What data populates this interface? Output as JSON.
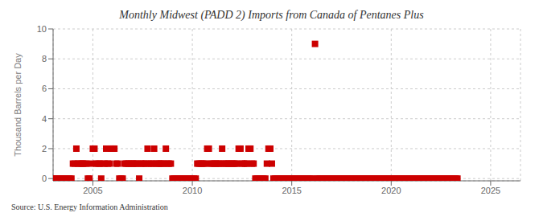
{
  "chart_data": {
    "type": "scatter",
    "title": "Monthly Midwest (PADD 2) Imports from Canada of Pentanes Plus",
    "ylabel": "Thousand Barrels per Day",
    "annotations": [
      "Source: U.S. Energy Information Administration"
    ],
    "color": "#cc0000",
    "marker": "square",
    "grid": true,
    "xlim": [
      2003.0,
      2026.5
    ],
    "ylim": [
      -0.15,
      10
    ],
    "xticks": [
      2005,
      2010,
      2015,
      2020,
      2025
    ],
    "yticks": [
      0,
      2,
      4,
      6,
      8,
      10
    ],
    "x": [
      2003.0,
      2003.08,
      2003.17,
      2003.25,
      2003.33,
      2003.42,
      2003.5,
      2003.58,
      2003.67,
      2003.75,
      2003.83,
      2003.92,
      2004.0,
      2004.08,
      2004.17,
      2004.25,
      2004.33,
      2004.42,
      2004.5,
      2004.58,
      2004.67,
      2004.75,
      2004.83,
      2004.92,
      2005.0,
      2005.08,
      2005.17,
      2005.25,
      2005.33,
      2005.42,
      2005.5,
      2005.58,
      2005.67,
      2005.75,
      2005.83,
      2005.92,
      2006.0,
      2006.08,
      2006.17,
      2006.25,
      2006.33,
      2006.42,
      2006.5,
      2006.58,
      2006.67,
      2006.75,
      2006.83,
      2006.92,
      2007.0,
      2007.08,
      2007.17,
      2007.25,
      2007.33,
      2007.42,
      2007.5,
      2007.58,
      2007.67,
      2007.75,
      2007.83,
      2007.92,
      2008.0,
      2008.08,
      2008.17,
      2008.25,
      2008.33,
      2008.42,
      2008.5,
      2008.58,
      2008.67,
      2008.75,
      2008.83,
      2008.92,
      2009.0,
      2009.08,
      2009.17,
      2009.25,
      2009.33,
      2009.42,
      2009.5,
      2009.58,
      2009.67,
      2009.75,
      2009.83,
      2009.92,
      2010.0,
      2010.08,
      2010.17,
      2010.25,
      2010.33,
      2010.42,
      2010.5,
      2010.58,
      2010.67,
      2010.75,
      2010.83,
      2010.92,
      2011.0,
      2011.08,
      2011.17,
      2011.25,
      2011.33,
      2011.42,
      2011.5,
      2011.58,
      2011.67,
      2011.75,
      2011.83,
      2011.92,
      2012.0,
      2012.08,
      2012.17,
      2012.25,
      2012.33,
      2012.42,
      2012.5,
      2012.58,
      2012.67,
      2012.75,
      2012.83,
      2012.92,
      2013.0,
      2013.08,
      2013.17,
      2013.25,
      2013.33,
      2013.42,
      2013.5,
      2013.58,
      2013.67,
      2013.75,
      2013.83,
      2013.92,
      2014.0,
      2014.08,
      2014.17,
      2014.25,
      2014.33,
      2014.42,
      2014.5,
      2014.58,
      2014.67,
      2014.75,
      2014.83,
      2014.92,
      2015.0,
      2015.08,
      2015.17,
      2015.25,
      2015.33,
      2015.42,
      2015.5,
      2015.58,
      2015.67,
      2015.75,
      2015.83,
      2015.92,
      2016.0,
      2016.17,
      2016.25,
      2016.33,
      2016.42,
      2016.5,
      2016.58,
      2016.67,
      2016.75,
      2016.83,
      2016.92,
      2017.0,
      2017.08,
      2017.17,
      2017.25,
      2017.33,
      2017.42,
      2017.5,
      2017.58,
      2017.67,
      2017.75,
      2017.83,
      2017.92,
      2018.0,
      2018.08,
      2018.17,
      2018.25,
      2018.33,
      2018.42,
      2018.5,
      2018.58,
      2018.67,
      2018.75,
      2018.83,
      2018.92,
      2019.0,
      2019.08,
      2019.17,
      2019.25,
      2019.33,
      2019.42,
      2019.5,
      2019.58,
      2019.67,
      2019.75,
      2019.83,
      2019.92,
      2020.0,
      2020.08,
      2020.17,
      2020.25,
      2020.33,
      2020.42,
      2020.5,
      2020.58,
      2020.67,
      2020.75,
      2020.83,
      2020.92,
      2021.0,
      2021.08,
      2021.17,
      2021.25,
      2021.33,
      2021.42,
      2021.5,
      2021.58,
      2021.67,
      2021.75,
      2021.83,
      2021.92,
      2022.0,
      2022.08,
      2022.17,
      2022.25,
      2022.33,
      2022.42,
      2022.5,
      2022.58,
      2022.67,
      2022.75,
      2022.83,
      2022.92,
      2023.0,
      2023.08,
      2023.17,
      2023.25,
      2023.33
    ],
    "values": [
      0,
      0,
      0,
      0,
      0,
      0,
      0,
      0,
      0,
      0,
      0,
      0,
      1,
      1,
      2,
      1,
      1,
      1,
      1,
      1,
      1,
      0,
      0,
      1,
      2,
      2,
      1,
      1,
      1,
      0,
      1,
      1,
      2,
      1,
      1,
      2,
      2,
      2,
      1,
      1,
      0,
      0,
      0,
      1,
      1,
      1,
      1,
      1,
      1,
      1,
      1,
      1,
      0,
      1,
      1,
      1,
      1,
      2,
      1,
      1,
      1,
      2,
      1,
      1,
      1,
      1,
      1,
      1,
      2,
      1,
      1,
      1,
      0,
      0,
      0,
      0,
      0,
      0,
      0,
      0,
      0,
      0,
      0,
      0,
      0,
      0,
      0,
      1,
      1,
      1,
      1,
      1,
      1,
      2,
      2,
      1,
      1,
      1,
      1,
      1,
      1,
      1,
      2,
      1,
      1,
      1,
      1,
      1,
      1,
      1,
      1,
      1,
      2,
      2,
      1,
      1,
      1,
      1,
      2,
      2,
      1,
      1,
      0,
      0,
      0,
      0,
      0,
      0,
      0,
      1,
      2,
      2,
      1,
      0,
      0,
      0,
      0,
      0,
      0,
      0,
      0,
      0,
      0,
      0,
      0,
      0,
      0,
      0,
      0,
      0,
      0,
      0,
      0,
      0,
      0,
      0,
      0,
      9,
      0,
      0,
      0,
      0,
      0,
      0,
      0,
      0,
      0,
      0,
      0,
      0,
      0,
      0,
      0,
      0,
      0,
      0,
      0,
      0,
      0,
      0,
      0,
      0,
      0,
      0,
      0,
      0,
      0,
      0,
      0,
      0,
      0,
      0,
      0,
      0,
      0,
      0,
      0,
      0,
      0,
      0,
      0,
      0,
      0,
      0,
      0,
      0,
      0,
      0,
      0,
      0,
      0,
      0,
      0,
      0,
      0,
      0,
      0,
      0,
      0,
      0,
      0,
      0,
      0,
      0,
      0,
      0,
      0,
      0,
      0,
      0,
      0,
      0,
      0,
      0,
      0,
      0,
      0,
      0,
      0,
      0,
      0,
      0,
      0,
      0
    ]
  }
}
